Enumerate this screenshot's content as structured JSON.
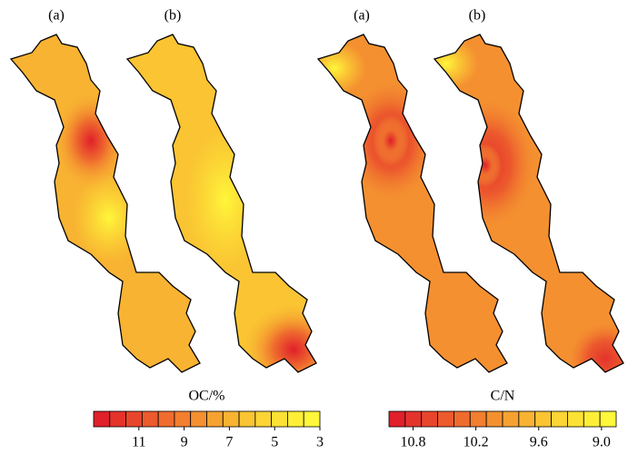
{
  "panels": [
    {
      "label": "(a)"
    },
    {
      "label": "(b)"
    },
    {
      "label": "(a)"
    },
    {
      "label": "(b)"
    }
  ],
  "colorbars": [
    {
      "title": "OC/%",
      "lim": [
        13,
        3
      ],
      "ticks": [
        11,
        9,
        7,
        5,
        3
      ],
      "colors": [
        "#e0202a",
        "#e4332b",
        "#e8462c",
        "#ec5a2d",
        "#ef6c2e",
        "#f27e2f",
        "#f49030",
        "#f6a231",
        "#f8b332",
        "#fac433",
        "#fcd434",
        "#fde235",
        "#feef36",
        "#fff73a"
      ]
    },
    {
      "title": "C/N",
      "lim": [
        11.03,
        8.86
      ],
      "ticks": [
        10.8,
        10.2,
        9.6,
        {
          "value": 9,
          "label": "9.0"
        }
      ],
      "colors": [
        "#e0202a",
        "#e4332b",
        "#e8462c",
        "#ec5a2d",
        "#ef6c2e",
        "#f27e2f",
        "#f49030",
        "#f6a231",
        "#f8b332",
        "#fac433",
        "#fcd434",
        "#fde235",
        "#feef36",
        "#fff73a"
      ]
    }
  ]
}
